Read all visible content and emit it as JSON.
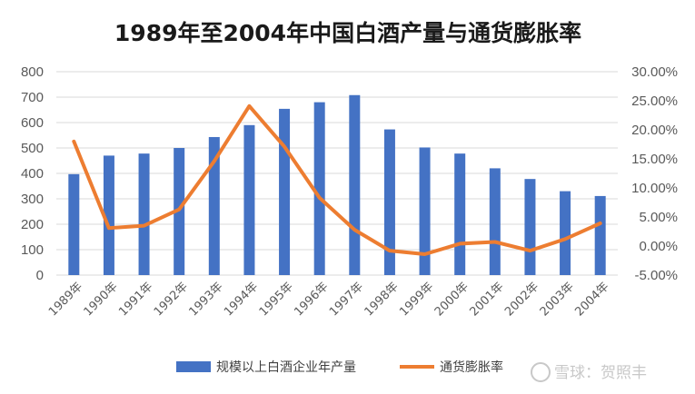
{
  "chart_data": {
    "type": "bar",
    "title": "1989年至2004年中国白酒产量与通货膨胀率",
    "categories": [
      "1989年",
      "1990年",
      "1991年",
      "1992年",
      "1993年",
      "1994年",
      "1995年",
      "1996年",
      "1997年",
      "1998年",
      "1999年",
      "2000年",
      "2001年",
      "2002年",
      "2003年",
      "2004年"
    ],
    "series": [
      {
        "name": "规模以上白酒企业年产量",
        "type": "bar",
        "axis": "left",
        "values": [
          397,
          470,
          478,
          500,
          543,
          590,
          654,
          680,
          708,
          573,
          502,
          478,
          420,
          378,
          330,
          311
        ],
        "color": "#4472C4"
      },
      {
        "name": "通货膨胀率",
        "type": "line",
        "axis": "right",
        "values": [
          18.0,
          3.1,
          3.5,
          6.3,
          14.6,
          24.1,
          17.1,
          8.3,
          2.8,
          -0.8,
          -1.4,
          0.4,
          0.7,
          -0.8,
          1.2,
          3.9
        ],
        "color": "#ED7D31"
      }
    ],
    "y_left": {
      "min": 0,
      "max": 800,
      "step": 100,
      "tick_labels": [
        "0",
        "100",
        "200",
        "300",
        "400",
        "500",
        "600",
        "700",
        "800"
      ]
    },
    "y_right": {
      "min": -5,
      "max": 30,
      "step": 5,
      "tick_labels": [
        "-5.00%",
        "0.00%",
        "5.00%",
        "10.00%",
        "15.00%",
        "20.00%",
        "25.00%",
        "30.00%"
      ]
    },
    "grid": true,
    "legend_position": "bottom"
  },
  "watermark": {
    "text": "雪球：贺照丰"
  }
}
